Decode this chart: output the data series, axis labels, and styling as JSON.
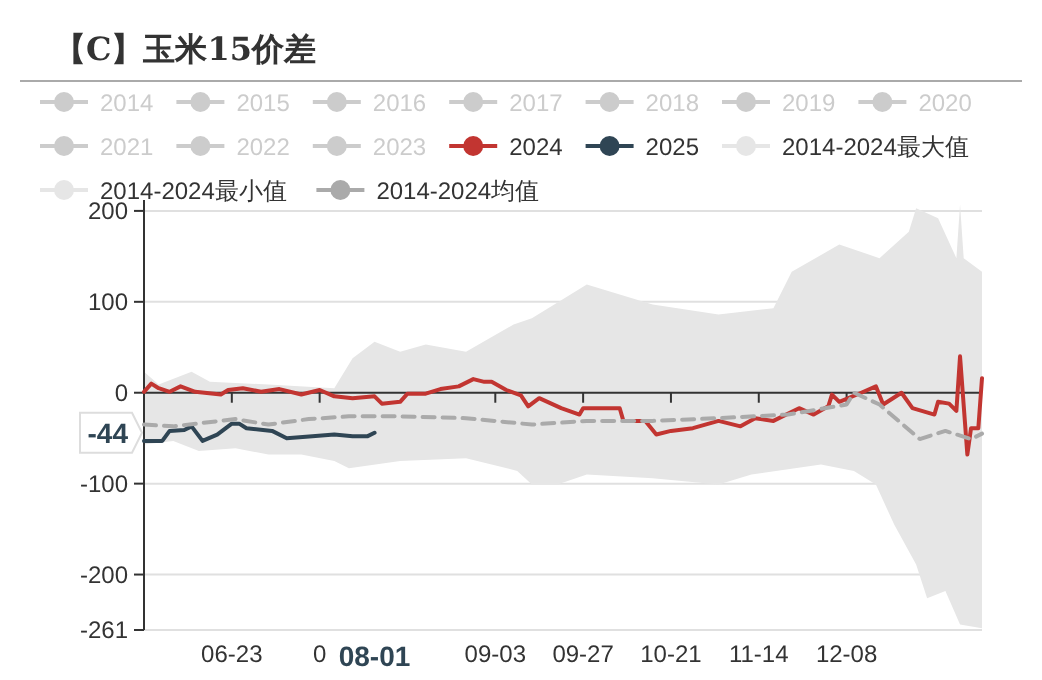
{
  "chart_data": {
    "type": "line",
    "title": "【C】玉米15价差",
    "xlim": [
      "2024-05-30",
      "2025-01-14"
    ],
    "xticks": [
      {
        "value": "2024-06-23",
        "label": "06-23"
      },
      {
        "value": "2024-07-17",
        "label": "0"
      },
      {
        "value": "2024-09-03",
        "label": "09-03"
      },
      {
        "value": "2024-09-27",
        "label": "09-27"
      },
      {
        "value": "2024-10-21",
        "label": "10-21"
      },
      {
        "value": "2024-11-14",
        "label": "11-14"
      },
      {
        "value": "2024-12-08",
        "label": "12-08"
      }
    ],
    "ylim": [
      -261,
      212
    ],
    "yticks": [
      -261,
      -200,
      -100,
      0,
      100,
      200
    ],
    "grid": "y",
    "legend": "top",
    "annotations": [
      "08-01",
      "-44"
    ],
    "series": [
      {
        "name": "2014",
        "color": "#cccccc"
      },
      {
        "name": "2015",
        "color": "#cccccc"
      },
      {
        "name": "2016",
        "color": "#cccccc"
      },
      {
        "name": "2017",
        "color": "#cccccc"
      },
      {
        "name": "2018",
        "color": "#cccccc"
      },
      {
        "name": "2019",
        "color": "#cccccc"
      },
      {
        "name": "2020",
        "color": "#cccccc"
      },
      {
        "name": "2021",
        "color": "#cccccc"
      },
      {
        "name": "2022",
        "color": "#cccccc"
      },
      {
        "name": "2023",
        "color": "#cccccc"
      },
      {
        "name": "2024",
        "type": "line",
        "color": "#c23531",
        "x": [
          "2024-05-30",
          "2024-06-01",
          "2024-06-03",
          "2024-06-06",
          "2024-06-09",
          "2024-06-13",
          "2024-06-20",
          "2024-06-22",
          "2024-06-26",
          "2024-07-01",
          "2024-07-06",
          "2024-07-12",
          "2024-07-17",
          "2024-07-21",
          "2024-07-26",
          "2024-08-01",
          "2024-08-03",
          "2024-08-08",
          "2024-08-10",
          "2024-08-15",
          "2024-08-19",
          "2024-08-24",
          "2024-08-28",
          "2024-08-31",
          "2024-09-02",
          "2024-09-06",
          "2024-09-10",
          "2024-09-12",
          "2024-09-15",
          "2024-09-21",
          "2024-09-26",
          "2024-09-27",
          "2024-10-07",
          "2024-10-08",
          "2024-10-14",
          "2024-10-17",
          "2024-10-21",
          "2024-10-27",
          "2024-11-03",
          "2024-11-09",
          "2024-11-13",
          "2024-11-18",
          "2024-11-25",
          "2024-11-29",
          "2024-12-03",
          "2024-12-04",
          "2024-12-06",
          "2024-12-12",
          "2024-12-16",
          "2024-12-18",
          "2024-12-23",
          "2024-12-26",
          "2025-01-01",
          "2025-01-02",
          "2025-01-05",
          "2025-01-07",
          "2025-01-08",
          "2025-01-10",
          "2025-01-11",
          "2025-01-13",
          "2025-01-14"
        ],
        "values": [
          1,
          10,
          5,
          1,
          7,
          1,
          -2,
          3,
          5,
          1,
          4,
          -2,
          3,
          -4,
          -6,
          -4,
          -12,
          -10,
          -1,
          -1,
          4,
          7,
          15,
          12,
          12,
          3,
          -3,
          -15,
          -6,
          -17,
          -24,
          -17,
          -17,
          -31,
          -31,
          -46,
          -42,
          -39,
          -31,
          -37,
          -28,
          -31,
          -17,
          -24,
          -15,
          -2,
          -10,
          0,
          7,
          -13,
          0,
          -17,
          -24,
          -10,
          -12,
          -20,
          40,
          -68,
          -39,
          -39,
          16
        ]
      },
      {
        "name": "2025",
        "type": "line",
        "color": "#2f4554",
        "x": [
          "2024-05-30",
          "2024-06-04",
          "2024-06-06",
          "2024-06-10",
          "2024-06-12",
          "2024-06-15",
          "2024-06-19",
          "2024-06-23",
          "2024-06-25",
          "2024-06-27",
          "2024-07-04",
          "2024-07-08",
          "2024-07-15",
          "2024-07-21",
          "2024-07-26",
          "2024-07-30",
          "2024-08-01"
        ],
        "values": [
          -53,
          -53,
          -42,
          -41,
          -37,
          -53,
          -46,
          -34,
          -34,
          -39,
          -42,
          -50,
          -48,
          -46,
          -48,
          -48,
          -44
        ]
      },
      {
        "name": "2014-2024最大值",
        "type": "area",
        "color": "#e6e6e6",
        "x": [
          "2024-05-30",
          "2024-06-03",
          "2024-06-12",
          "2024-06-17",
          "2024-07-03",
          "2024-07-21",
          "2024-07-26",
          "2024-08-01",
          "2024-08-08",
          "2024-08-15",
          "2024-08-26",
          "2024-09-08",
          "2024-09-13",
          "2024-09-28",
          "2024-10-16",
          "2024-11-03",
          "2024-11-18",
          "2024-11-23",
          "2024-12-06",
          "2024-12-17",
          "2024-12-25",
          "2024-12-27",
          "2025-01-02",
          "2025-01-07",
          "2025-01-08",
          "2025-01-09",
          "2025-01-14"
        ],
        "values": [
          23,
          9,
          23,
          12,
          9,
          5,
          38,
          56,
          45,
          53,
          45,
          75,
          82,
          119,
          97,
          86,
          93,
          133,
          163,
          148,
          177,
          203,
          192,
          148,
          207,
          148,
          133
        ]
      },
      {
        "name": "2014-2024最小值",
        "type": "area",
        "color": "#e6e6e6",
        "x": [
          "2024-05-30",
          "2024-06-07",
          "2024-06-14",
          "2024-06-24",
          "2024-07-03",
          "2024-07-12",
          "2024-07-21",
          "2024-07-25",
          "2024-08-08",
          "2024-08-26",
          "2024-09-09",
          "2024-09-13",
          "2024-09-20",
          "2024-09-28",
          "2024-10-16",
          "2024-11-03",
          "2024-11-12",
          "2024-12-01",
          "2024-12-10",
          "2024-12-16",
          "2024-12-21",
          "2024-12-27",
          "2024-12-30",
          "2025-01-04",
          "2025-01-08",
          "2025-01-14"
        ],
        "values": [
          -57,
          -53,
          -64,
          -61,
          -68,
          -68,
          -75,
          -83,
          -75,
          -72,
          -86,
          -101,
          -101,
          -90,
          -94,
          -101,
          -90,
          -79,
          -86,
          -101,
          -145,
          -189,
          -226,
          -218,
          -255,
          -259
        ]
      },
      {
        "name": "2014-2024均值",
        "type": "line",
        "line_style": "dashed",
        "color": "#aaaaaa",
        "x": [
          "2024-05-30",
          "2024-06-07",
          "2024-06-24",
          "2024-07-03",
          "2024-07-14",
          "2024-07-25",
          "2024-08-08",
          "2024-08-26",
          "2024-09-13",
          "2024-09-28",
          "2024-10-16",
          "2024-11-03",
          "2024-11-22",
          "2024-12-08",
          "2024-12-10",
          "2024-12-17",
          "2024-12-28",
          "2025-01-04",
          "2025-01-11",
          "2025-01-14"
        ],
        "values": [
          -35,
          -37,
          -29,
          -35,
          -29,
          -26,
          -26,
          -28,
          -35,
          -31,
          -31,
          -28,
          -24,
          -13,
          0,
          -13,
          -51,
          -42,
          -51,
          -45
        ]
      }
    ]
  }
}
